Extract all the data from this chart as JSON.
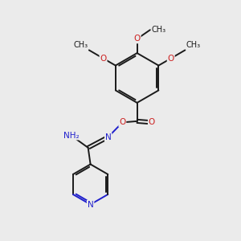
{
  "background_color": "#ebebeb",
  "bond_color": "#1a1a1a",
  "bond_width": 1.4,
  "atom_colors": {
    "C": "#1a1a1a",
    "N": "#2020cc",
    "O": "#cc2020",
    "H": "#555555"
  },
  "font_size": 7.5,
  "fig_size": [
    3.0,
    3.0
  ],
  "dpi": 100,
  "xlim": [
    0,
    10
  ],
  "ylim": [
    0,
    10
  ]
}
